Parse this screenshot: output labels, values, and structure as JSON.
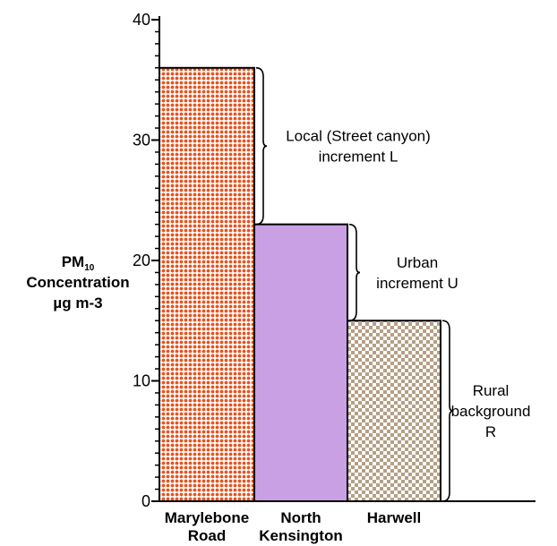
{
  "chart_data": {
    "type": "bar",
    "categories": [
      "Marylebone Road",
      "North Kensington",
      "Harwell"
    ],
    "category_labels": [
      [
        "Marylebone",
        "Road"
      ],
      [
        "North",
        "Kensington"
      ],
      [
        "Harwell"
      ]
    ],
    "values": [
      36,
      23,
      15
    ],
    "ylim": [
      0,
      40
    ],
    "yticks": [
      0,
      10,
      20,
      30,
      40
    ],
    "ylabel": {
      "pm": "PM",
      "pm_sub": "10",
      "line2": "Concentration",
      "line3": "µg m-3"
    },
    "grid": false,
    "legend": "none",
    "bar_fills": [
      {
        "pattern": "dots",
        "background": "#ffffff",
        "color": "#e8531f"
      },
      {
        "pattern": "solid",
        "color": "#c9a0e4"
      },
      {
        "pattern": "checker",
        "background": "#ffffff",
        "color": "#b59f85"
      }
    ],
    "annotations": [
      {
        "lines": [
          "Local (Street canyon)",
          "increment L"
        ],
        "range": [
          23,
          36
        ]
      },
      {
        "lines": [
          "Urban",
          "increment U"
        ],
        "range": [
          15,
          23
        ]
      },
      {
        "lines": [
          "Rural",
          "background",
          "R"
        ],
        "range": [
          0,
          15
        ]
      }
    ]
  }
}
